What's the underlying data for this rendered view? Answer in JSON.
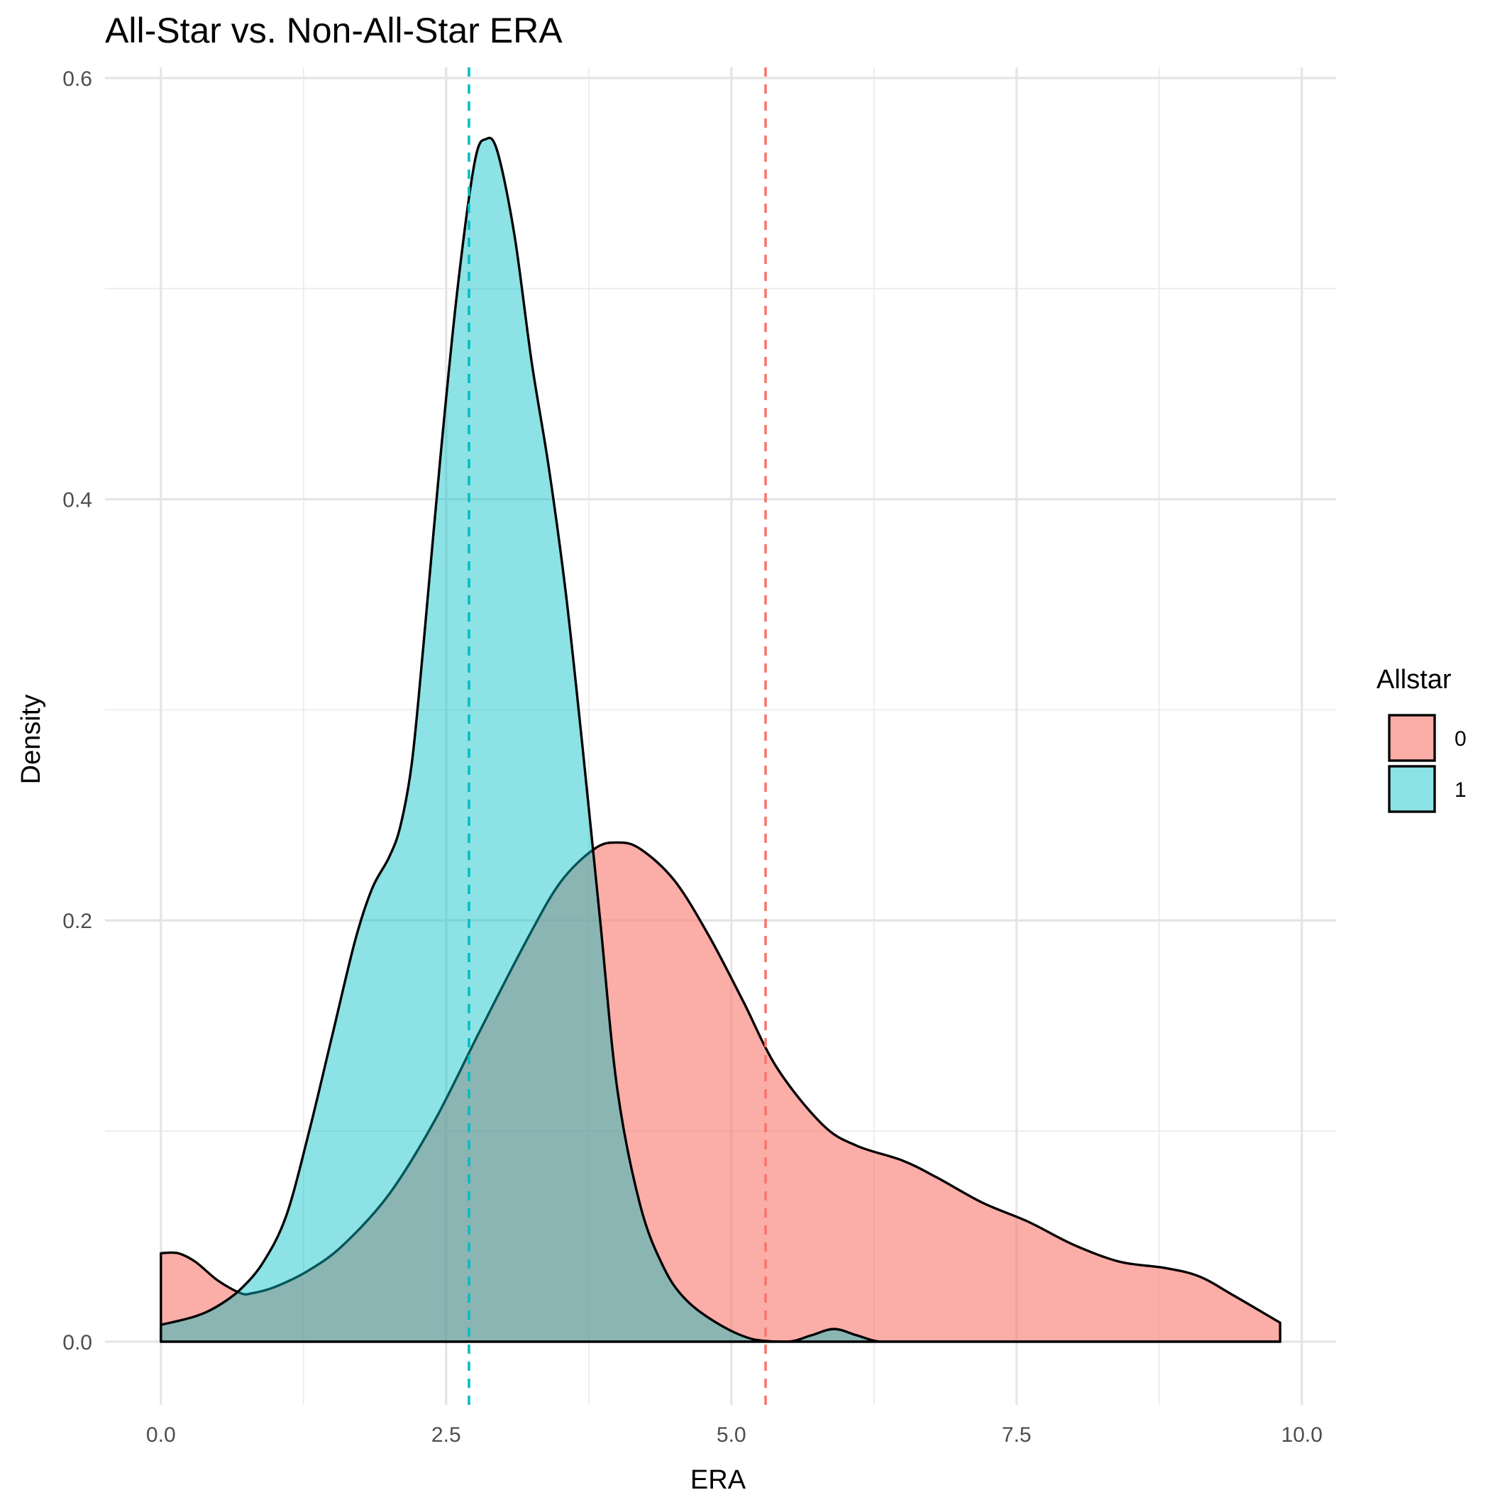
{
  "chart_data": {
    "type": "area",
    "title": "All-Star vs. Non-All-Star ERA",
    "xlabel": "ERA",
    "ylabel": "Density",
    "xlim": [
      0,
      9.81
    ],
    "ylim": [
      0,
      0.6
    ],
    "x_ticks": [
      {
        "value": 0,
        "label": "0.0"
      },
      {
        "value": 2.5,
        "label": "2.5"
      },
      {
        "value": 5,
        "label": "5.0"
      },
      {
        "value": 7.5,
        "label": "7.5"
      },
      {
        "value": 10,
        "label": "10.0"
      }
    ],
    "y_ticks": [
      {
        "value": 0,
        "label": "0.0"
      },
      {
        "value": 0.2,
        "label": "0.2"
      },
      {
        "value": 0.4,
        "label": "0.4"
      },
      {
        "value": 0.6,
        "label": "0.6"
      }
    ],
    "grid": true,
    "legend": {
      "title": "Allstar",
      "position": "right"
    },
    "series": [
      {
        "name": "0",
        "color": "#F8766D",
        "fill_opacity": 0.6,
        "mean": 5.3,
        "points": [
          [
            0.0,
            0.042
          ],
          [
            0.15,
            0.042
          ],
          [
            0.3,
            0.038
          ],
          [
            0.5,
            0.029
          ],
          [
            0.7,
            0.023
          ],
          [
            0.8,
            0.023
          ],
          [
            1.0,
            0.026
          ],
          [
            1.3,
            0.034
          ],
          [
            1.6,
            0.046
          ],
          [
            2.0,
            0.07
          ],
          [
            2.4,
            0.105
          ],
          [
            2.8,
            0.148
          ],
          [
            3.2,
            0.19
          ],
          [
            3.5,
            0.218
          ],
          [
            3.8,
            0.234
          ],
          [
            4.0,
            0.237
          ],
          [
            4.2,
            0.234
          ],
          [
            4.5,
            0.219
          ],
          [
            4.8,
            0.193
          ],
          [
            5.1,
            0.162
          ],
          [
            5.4,
            0.13
          ],
          [
            5.8,
            0.103
          ],
          [
            6.1,
            0.093
          ],
          [
            6.5,
            0.086
          ],
          [
            6.8,
            0.078
          ],
          [
            7.2,
            0.066
          ],
          [
            7.6,
            0.057
          ],
          [
            8.0,
            0.046
          ],
          [
            8.4,
            0.038
          ],
          [
            8.8,
            0.035
          ],
          [
            9.1,
            0.031
          ],
          [
            9.4,
            0.022
          ],
          [
            9.81,
            0.009
          ]
        ]
      },
      {
        "name": "1",
        "color": "#00BFC4",
        "fill_opacity": 0.45,
        "mean": 2.7,
        "points": [
          [
            0.0,
            0.008
          ],
          [
            0.3,
            0.012
          ],
          [
            0.5,
            0.017
          ],
          [
            0.7,
            0.025
          ],
          [
            0.9,
            0.038
          ],
          [
            1.1,
            0.06
          ],
          [
            1.3,
            0.1
          ],
          [
            1.5,
            0.145
          ],
          [
            1.7,
            0.19
          ],
          [
            1.85,
            0.215
          ],
          [
            2.0,
            0.23
          ],
          [
            2.1,
            0.245
          ],
          [
            2.2,
            0.275
          ],
          [
            2.3,
            0.33
          ],
          [
            2.45,
            0.42
          ],
          [
            2.6,
            0.5
          ],
          [
            2.75,
            0.56
          ],
          [
            2.85,
            0.571
          ],
          [
            2.95,
            0.565
          ],
          [
            3.1,
            0.525
          ],
          [
            3.25,
            0.465
          ],
          [
            3.4,
            0.415
          ],
          [
            3.55,
            0.355
          ],
          [
            3.7,
            0.28
          ],
          [
            3.85,
            0.2
          ],
          [
            4.0,
            0.12
          ],
          [
            4.2,
            0.065
          ],
          [
            4.4,
            0.036
          ],
          [
            4.6,
            0.02
          ],
          [
            4.9,
            0.008
          ],
          [
            5.2,
            0.001
          ],
          [
            5.5,
            0.0
          ],
          [
            5.7,
            0.003
          ],
          [
            5.9,
            0.006
          ],
          [
            6.1,
            0.003
          ],
          [
            6.3,
            0.0
          ],
          [
            6.6,
            0.0
          ],
          [
            9.81,
            0.0
          ]
        ]
      }
    ]
  }
}
